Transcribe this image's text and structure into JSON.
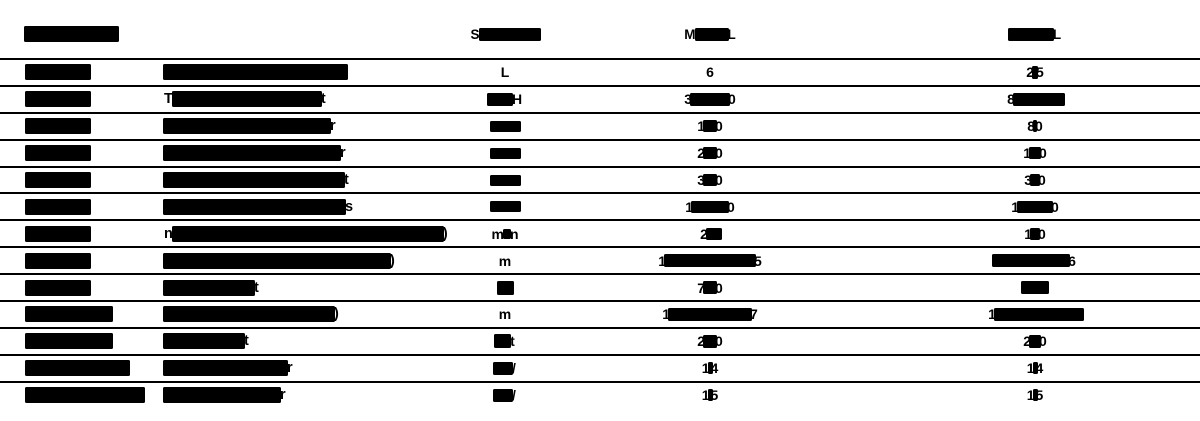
{
  "colors": {
    "ink": "#000000",
    "background": "#ffffff"
  },
  "table": {
    "header": {
      "col1": [
        {
          "bar": 95
        }
      ],
      "col3": [
        {
          "text": "S"
        },
        {
          "bar": 62
        }
      ],
      "col4": [
        {
          "text": "M"
        },
        {
          "bar": 34
        },
        {
          "text": "L"
        }
      ],
      "col5": [
        {
          "bar": 46
        },
        {
          "text": "L"
        }
      ]
    },
    "rows": [
      {
        "c1": [
          {
            "bar": 66
          }
        ],
        "c2": [
          {
            "bar": 185
          }
        ],
        "c3": [
          {
            "text": "L"
          }
        ],
        "c4": [
          {
            "text": "6"
          }
        ],
        "c5": [
          {
            "text": "2"
          },
          {
            "bar": 6
          },
          {
            "text": "5"
          }
        ]
      },
      {
        "c1": [
          {
            "bar": 66
          }
        ],
        "c2": [
          {
            "text": "T"
          },
          {
            "bar": 150
          },
          {
            "text": "t"
          }
        ],
        "c3": [
          {
            "bar": 26,
            "h": 13
          },
          {
            "text": "H"
          }
        ],
        "c4": [
          {
            "text": "3"
          },
          {
            "bar": 40
          },
          {
            "text": "0"
          }
        ],
        "c5": [
          {
            "text": "8"
          },
          {
            "bar": 52
          }
        ]
      },
      {
        "c1": [
          {
            "bar": 66
          }
        ],
        "c2": [
          {
            "bar": 168
          },
          {
            "text": "r"
          }
        ],
        "c3": [
          {
            "bar": 31
          }
        ],
        "c4": [
          {
            "text": "1"
          },
          {
            "bar": 14
          },
          {
            "text": "0"
          }
        ],
        "c5": [
          {
            "text": "8"
          },
          {
            "bar": 4
          },
          {
            "text": "0"
          }
        ]
      },
      {
        "c1": [
          {
            "bar": 66
          }
        ],
        "c2": [
          {
            "bar": 178
          },
          {
            "text": "r"
          }
        ],
        "c3": [
          {
            "bar": 31
          }
        ],
        "c4": [
          {
            "text": "2"
          },
          {
            "bar": 14
          },
          {
            "text": "0"
          }
        ],
        "c5": [
          {
            "text": "1"
          },
          {
            "bar": 12
          },
          {
            "text": "0"
          }
        ]
      },
      {
        "c1": [
          {
            "bar": 66
          }
        ],
        "c2": [
          {
            "bar": 182
          },
          {
            "text": "t"
          }
        ],
        "c3": [
          {
            "bar": 31
          }
        ],
        "c4": [
          {
            "text": "3"
          },
          {
            "bar": 14
          },
          {
            "text": "0"
          }
        ],
        "c5": [
          {
            "text": "3"
          },
          {
            "bar": 10
          },
          {
            "text": "0"
          }
        ]
      },
      {
        "c1": [
          {
            "bar": 66
          }
        ],
        "c2": [
          {
            "bar": 183
          },
          {
            "text": "s"
          }
        ],
        "c3": [
          {
            "bar": 31
          }
        ],
        "c4": [
          {
            "text": "1"
          },
          {
            "bar": 38
          },
          {
            "text": "0"
          }
        ],
        "c5": [
          {
            "text": "1"
          },
          {
            "bar": 36
          },
          {
            "text": "0"
          }
        ]
      },
      {
        "c1": [
          {
            "bar": 66
          }
        ],
        "c2": [
          {
            "text": "n"
          },
          {
            "bar": 272
          },
          {
            "text": ")"
          }
        ],
        "c3": [
          {
            "text": "m"
          },
          {
            "bar": 8,
            "h": 10
          },
          {
            "text": "n"
          }
        ],
        "c4": [
          {
            "text": "2"
          },
          {
            "bar": 16
          }
        ],
        "c5": [
          {
            "text": "1"
          },
          {
            "bar": 10
          },
          {
            "text": "0"
          }
        ]
      },
      {
        "c1": [
          {
            "bar": 66
          }
        ],
        "c2": [
          {
            "bar": 228
          },
          {
            "text": ")"
          }
        ],
        "c3": [
          {
            "text": "m"
          }
        ],
        "c4": [
          {
            "text": "1"
          },
          {
            "bar": 92
          },
          {
            "text": "5"
          }
        ],
        "c5": [
          {
            "bar": 78
          },
          {
            "text": "6"
          }
        ]
      },
      {
        "c1": [
          {
            "bar": 66
          }
        ],
        "c2": [
          {
            "bar": 92
          },
          {
            "text": "t"
          }
        ],
        "c3": [
          {
            "bar": 17,
            "h": 14
          }
        ],
        "c4": [
          {
            "text": "7"
          },
          {
            "bar": 14
          },
          {
            "text": "0"
          }
        ],
        "c5": [
          {
            "bar": 28
          }
        ]
      },
      {
        "c1": [
          {
            "bar": 88
          }
        ],
        "c2": [
          {
            "bar": 172
          },
          {
            "text": ")"
          }
        ],
        "c3": [
          {
            "text": "m"
          }
        ],
        "c4": [
          {
            "text": "1"
          },
          {
            "bar": 84
          },
          {
            "text": "7"
          }
        ],
        "c5": [
          {
            "text": "1"
          },
          {
            "bar": 90
          }
        ]
      },
      {
        "c1": [
          {
            "bar": 88
          }
        ],
        "c2": [
          {
            "bar": 82
          },
          {
            "text": "t"
          }
        ],
        "c3": [
          {
            "bar": 17,
            "h": 14
          },
          {
            "text": "t"
          }
        ],
        "c4": [
          {
            "text": "2"
          },
          {
            "bar": 14
          },
          {
            "text": "0"
          }
        ],
        "c5": [
          {
            "text": "2"
          },
          {
            "bar": 12
          },
          {
            "text": "0"
          }
        ]
      },
      {
        "c1": [
          {
            "bar": 105
          }
        ],
        "c2": [
          {
            "bar": 125
          },
          {
            "text": "r"
          }
        ],
        "c3": [
          {
            "bar": 20,
            "h": 13
          },
          {
            "text": "/"
          }
        ],
        "c4": [
          {
            "text": "1"
          },
          {
            "bar": 5
          },
          {
            "text": "4"
          }
        ],
        "c5": [
          {
            "text": "1"
          },
          {
            "bar": 5
          },
          {
            "text": "4"
          }
        ]
      },
      {
        "c1": [
          {
            "bar": 120
          }
        ],
        "c2": [
          {
            "bar": 118
          },
          {
            "text": "r"
          }
        ],
        "c3": [
          {
            "bar": 20,
            "h": 13
          },
          {
            "text": "/"
          }
        ],
        "c4": [
          {
            "text": "1"
          },
          {
            "bar": 5
          },
          {
            "text": "5"
          }
        ],
        "c5": [
          {
            "text": "1"
          },
          {
            "bar": 5
          },
          {
            "text": "5"
          }
        ]
      }
    ]
  }
}
